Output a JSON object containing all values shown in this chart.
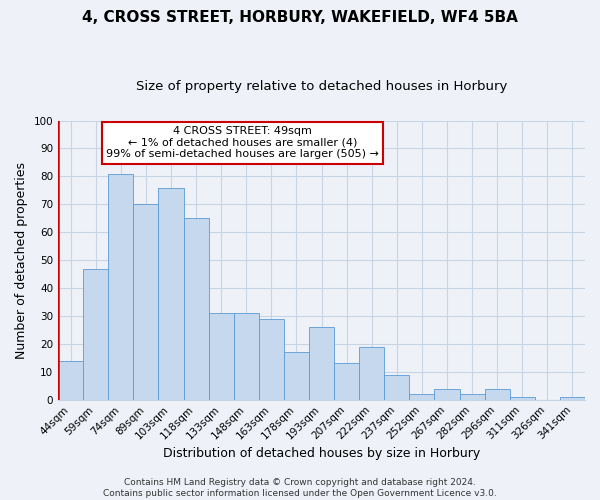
{
  "title": "4, CROSS STREET, HORBURY, WAKEFIELD, WF4 5BA",
  "subtitle": "Size of property relative to detached houses in Horbury",
  "xlabel": "Distribution of detached houses by size in Horbury",
  "ylabel": "Number of detached properties",
  "categories": [
    "44sqm",
    "59sqm",
    "74sqm",
    "89sqm",
    "103sqm",
    "118sqm",
    "133sqm",
    "148sqm",
    "163sqm",
    "178sqm",
    "193sqm",
    "207sqm",
    "222sqm",
    "237sqm",
    "252sqm",
    "267sqm",
    "282sqm",
    "296sqm",
    "311sqm",
    "326sqm",
    "341sqm"
  ],
  "values": [
    14,
    47,
    81,
    70,
    76,
    65,
    31,
    31,
    29,
    17,
    26,
    13,
    19,
    9,
    2,
    4,
    2,
    4,
    1,
    0,
    1
  ],
  "bar_color": "#c5d8ed",
  "bar_edge_color": "#5b9bd5",
  "ylim": [
    0,
    100
  ],
  "yticks": [
    0,
    10,
    20,
    30,
    40,
    50,
    60,
    70,
    80,
    90,
    100
  ],
  "annotation_box_text_line1": "4 CROSS STREET: 49sqm",
  "annotation_box_text_line2": "← 1% of detached houses are smaller (4)",
  "annotation_box_text_line3": "99% of semi-detached houses are larger (505) →",
  "annotation_box_color": "#cc0000",
  "annotation_box_fill": "#ffffff",
  "vline_color": "#cc0000",
  "footer_line1": "Contains HM Land Registry data © Crown copyright and database right 2024.",
  "footer_line2": "Contains public sector information licensed under the Open Government Licence v3.0.",
  "background_color": "#eef2f8",
  "grid_color": "#c8d4e4",
  "title_fontsize": 11,
  "subtitle_fontsize": 9.5,
  "axis_label_fontsize": 9,
  "tick_fontsize": 7.5,
  "annotation_fontsize": 8,
  "footer_fontsize": 6.5
}
